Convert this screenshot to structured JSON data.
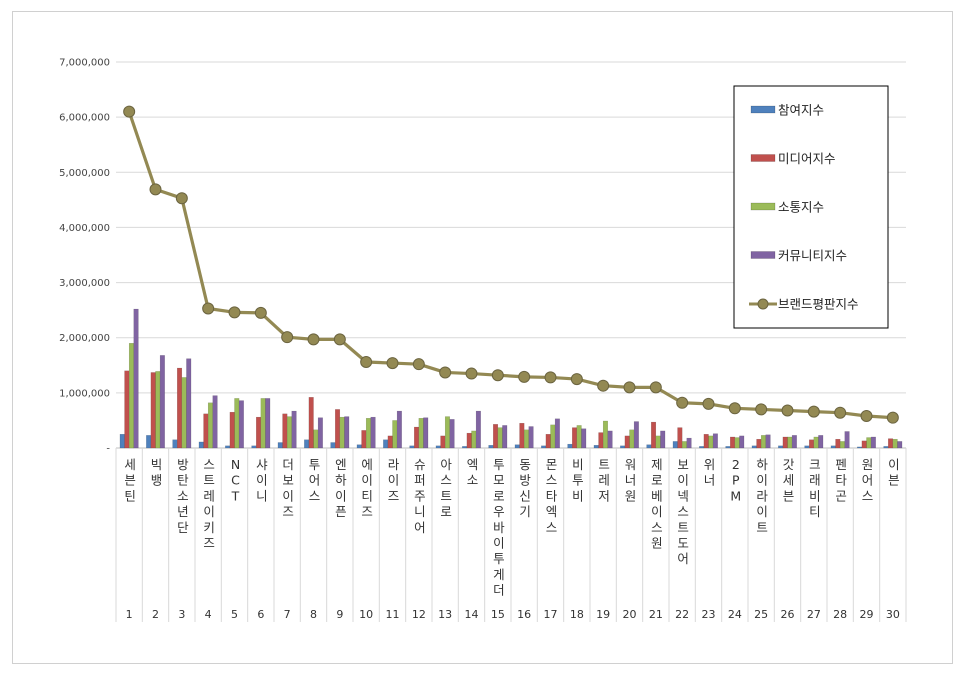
{
  "chart_data": {
    "type": "bar",
    "yticks": [
      "-",
      "1,000,000",
      "2,000,000",
      "3,000,000",
      "4,000,000",
      "5,000,000",
      "6,000,000",
      "7,000,000"
    ],
    "ylim": [
      0,
      7000000
    ],
    "grid": true,
    "legend_position": "top-right",
    "ranks": [
      "1",
      "2",
      "3",
      "4",
      "5",
      "6",
      "7",
      "8",
      "9",
      "10",
      "11",
      "12",
      "13",
      "14",
      "15",
      "16",
      "17",
      "18",
      "19",
      "20",
      "21",
      "22",
      "23",
      "24",
      "25",
      "26",
      "27",
      "28",
      "29",
      "30"
    ],
    "categories": [
      "세븐틴",
      "빅뱅",
      "방탄소년단",
      "스트레이키즈",
      "NCT",
      "샤이니",
      "더보이즈",
      "투어스",
      "엔하이픈",
      "에이티즈",
      "라이즈",
      "슈퍼주니어",
      "아스트로",
      "엑소",
      "투모로우바이투게더",
      "동방신기",
      "몬스타엑스",
      "비투비",
      "트레저",
      "워너원",
      "제로베이스원",
      "보이넥스트도어",
      "위너",
      "2PM",
      "하이라이트",
      "갓세븐",
      "크래비티",
      "펜타곤",
      "원어스",
      "이븐"
    ],
    "series": [
      {
        "name": "참여지수",
        "type": "bar",
        "color": "#4f81bd",
        "values": [
          250000,
          230000,
          150000,
          110000,
          40000,
          40000,
          100000,
          150000,
          100000,
          60000,
          150000,
          40000,
          40000,
          30000,
          50000,
          60000,
          40000,
          70000,
          50000,
          40000,
          60000,
          120000,
          30000,
          30000,
          40000,
          40000,
          40000,
          40000,
          20000,
          30000
        ]
      },
      {
        "name": "미디어지수",
        "type": "bar",
        "color": "#c0504d",
        "values": [
          1400000,
          1370000,
          1450000,
          620000,
          650000,
          560000,
          620000,
          920000,
          700000,
          320000,
          220000,
          380000,
          220000,
          270000,
          430000,
          450000,
          250000,
          370000,
          280000,
          220000,
          470000,
          370000,
          250000,
          200000,
          160000,
          200000,
          150000,
          160000,
          130000,
          170000
        ]
      },
      {
        "name": "소통지수",
        "type": "bar",
        "color": "#9bbb59",
        "values": [
          1900000,
          1390000,
          1280000,
          820000,
          900000,
          900000,
          570000,
          330000,
          560000,
          540000,
          500000,
          540000,
          570000,
          310000,
          370000,
          330000,
          420000,
          410000,
          490000,
          330000,
          220000,
          120000,
          220000,
          190000,
          230000,
          200000,
          200000,
          120000,
          190000,
          160000
        ]
      },
      {
        "name": "커뮤니티지수",
        "type": "bar",
        "color": "#8064a2",
        "values": [
          2520000,
          1680000,
          1620000,
          950000,
          860000,
          900000,
          670000,
          550000,
          570000,
          560000,
          670000,
          550000,
          520000,
          670000,
          410000,
          390000,
          530000,
          350000,
          310000,
          480000,
          310000,
          180000,
          260000,
          220000,
          240000,
          230000,
          230000,
          300000,
          200000,
          120000
        ]
      },
      {
        "name": "브랜드평판지수",
        "type": "line",
        "color": "#938953",
        "values": [
          6100000,
          4690000,
          4530000,
          2530000,
          2460000,
          2450000,
          2010000,
          1970000,
          1970000,
          1560000,
          1540000,
          1520000,
          1370000,
          1350000,
          1320000,
          1290000,
          1280000,
          1250000,
          1130000,
          1100000,
          1100000,
          820000,
          800000,
          720000,
          700000,
          680000,
          660000,
          640000,
          580000,
          550000
        ]
      }
    ]
  }
}
